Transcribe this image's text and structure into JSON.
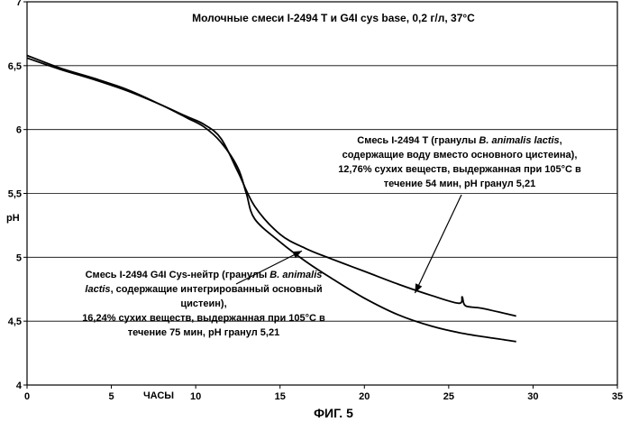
{
  "chart_data": {
    "type": "line",
    "title": "Молочные смеси I-2494 T и G4I cys base, 0,2 г/л, 37°C",
    "xlabel": "ЧАСЫ",
    "ylabel": "pH",
    "xlim": [
      0,
      35
    ],
    "ylim": [
      4,
      7
    ],
    "x_ticks": [
      0,
      5,
      10,
      15,
      20,
      25,
      30,
      35
    ],
    "x_tick_labels": [
      "0",
      "5",
      "10",
      "15",
      "20",
      "25",
      "30",
      "35"
    ],
    "y_ticks": [
      4,
      4.5,
      5,
      5.5,
      6,
      6.5,
      7
    ],
    "y_tick_labels": [
      "4",
      "4,5",
      "5",
      "5,5",
      "6",
      "6,5",
      "7"
    ],
    "grid": "horizontal",
    "caption": "ФИГ. 5",
    "series": [
      {
        "name": "Смесь I-2494 T",
        "x": [
          0,
          2,
          4,
          6,
          8,
          9.5,
          10.5,
          11.5,
          12.5,
          13.5,
          15,
          16.5,
          18,
          20,
          22,
          24,
          25.6,
          25.8,
          26,
          27,
          29
        ],
        "y": [
          6.56,
          6.47,
          6.39,
          6.3,
          6.19,
          6.1,
          6.04,
          5.93,
          5.67,
          5.4,
          5.18,
          5.07,
          4.99,
          4.89,
          4.79,
          4.7,
          4.64,
          4.69,
          4.62,
          4.6,
          4.54
        ]
      },
      {
        "name": "Смесь I-2494 G4I Cys-нейтр",
        "x": [
          0,
          2,
          4,
          6,
          8,
          9.5,
          10.5,
          11.5,
          12.5,
          13,
          13.5,
          15,
          16.5,
          18,
          20,
          22,
          24,
          26,
          28,
          29
        ],
        "y": [
          6.58,
          6.48,
          6.4,
          6.31,
          6.19,
          6.09,
          6.02,
          5.9,
          5.7,
          5.5,
          5.3,
          5.12,
          4.97,
          4.84,
          4.68,
          4.55,
          4.46,
          4.4,
          4.36,
          4.34
        ]
      }
    ],
    "annotations": [
      {
        "target": "Смесь I-2494 T",
        "lines": [
          [
            {
              "t": "Смесь I-2494 T (гранулы "
            },
            {
              "t": "B. animalis lactis",
              "i": true
            },
            {
              "t": ","
            }
          ],
          [
            {
              "t": "содержащие воду вместо основного цистеина),"
            }
          ],
          [
            {
              "t": "12,76% сухих веществ, выдержанная при 105°C в"
            }
          ],
          [
            {
              "t": "течение 54 мин, pH гранул 5,21"
            }
          ]
        ]
      },
      {
        "target": "Смесь I-2494 G4I Cys-нейтр",
        "lines": [
          [
            {
              "t": "Смесь I-2494 G4I Cys-нейтр (гранулы "
            },
            {
              "t": "B. animalis",
              "i": true
            }
          ],
          [
            {
              "t": "lactis",
              "i": true
            },
            {
              "t": ", содержащие интегрированный основный"
            }
          ],
          [
            {
              "t": "цистеин),"
            }
          ],
          [
            {
              "t": "16,24% сухих веществ, выдержанная при 105°C в"
            }
          ],
          [
            {
              "t": "течение 75 мин, pH гранул 5,21"
            }
          ]
        ]
      }
    ]
  }
}
